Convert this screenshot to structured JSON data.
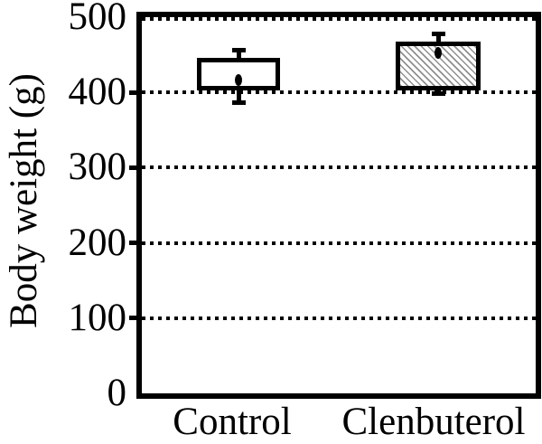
{
  "figure": {
    "background": "#ffffff"
  },
  "chart_data": {
    "type": "bar",
    "title": "",
    "ylabel": "Body weight (g)",
    "xlabel": "",
    "ylim": [
      0,
      500
    ],
    "yticks": [
      0,
      100,
      200,
      300,
      400,
      500
    ],
    "gridlines": [
      100,
      200,
      300,
      400,
      500
    ],
    "grid_style": "dotted",
    "legend": "none",
    "categories": [
      "Control",
      "Clenbuterol"
    ],
    "series": [
      {
        "name": "Control",
        "fill": "solid-white",
        "bar_span_g": [
          403,
          446
        ],
        "whisker_span_g": [
          386,
          456
        ],
        "mean_dot_g": 417
      },
      {
        "name": "Clenbuterol",
        "fill": "diagonal-hatch",
        "bar_span_g": [
          403,
          467
        ],
        "whisker_span_g": [
          398,
          478
        ],
        "mean_dot_g": 453
      }
    ],
    "colors": {
      "axis": "#000000",
      "bar_border": "#000000",
      "bar_fill": "#ffffff",
      "hatch": "#8f8f8f"
    }
  }
}
